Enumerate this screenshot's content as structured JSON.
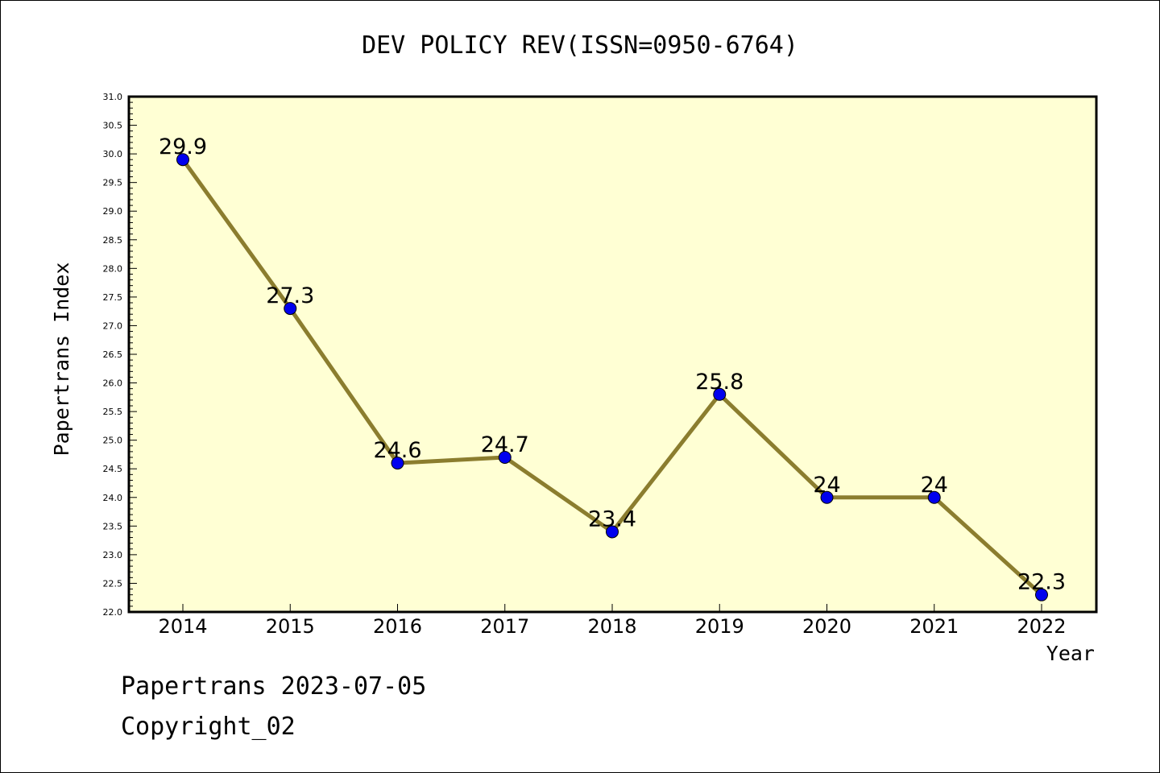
{
  "chart_data": {
    "type": "line",
    "title": "DEV POLICY REV(ISSN=0950-6764)",
    "xlabel": "Year",
    "ylabel": "Papertrans Index",
    "categories": [
      "2014",
      "2015",
      "2016",
      "2017",
      "2018",
      "2019",
      "2020",
      "2021",
      "2022"
    ],
    "values": [
      29.9,
      27.3,
      24.6,
      24.7,
      23.4,
      25.8,
      24.0,
      24.0,
      22.3
    ],
    "data_labels": [
      "29.9",
      "27.3",
      "24.6",
      "24.7",
      "23.4",
      "25.8",
      "24",
      "24",
      "22.3"
    ],
    "ylim": [
      22.0,
      31.0
    ],
    "yticks": [
      "22.0",
      "22.5",
      "23.0",
      "23.5",
      "24.0",
      "24.5",
      "25.0",
      "25.5",
      "26.0",
      "26.5",
      "27.0",
      "27.5",
      "28.0",
      "28.5",
      "29.0",
      "29.5",
      "30.0",
      "30.5",
      "31.0"
    ],
    "grid": false,
    "line_color": "#8b7d2e",
    "marker_color": "#0000ee",
    "plot_background": "#ffffd4"
  },
  "footer": {
    "line1": "Papertrans 2023-07-05",
    "line2": "Copyright_02"
  }
}
